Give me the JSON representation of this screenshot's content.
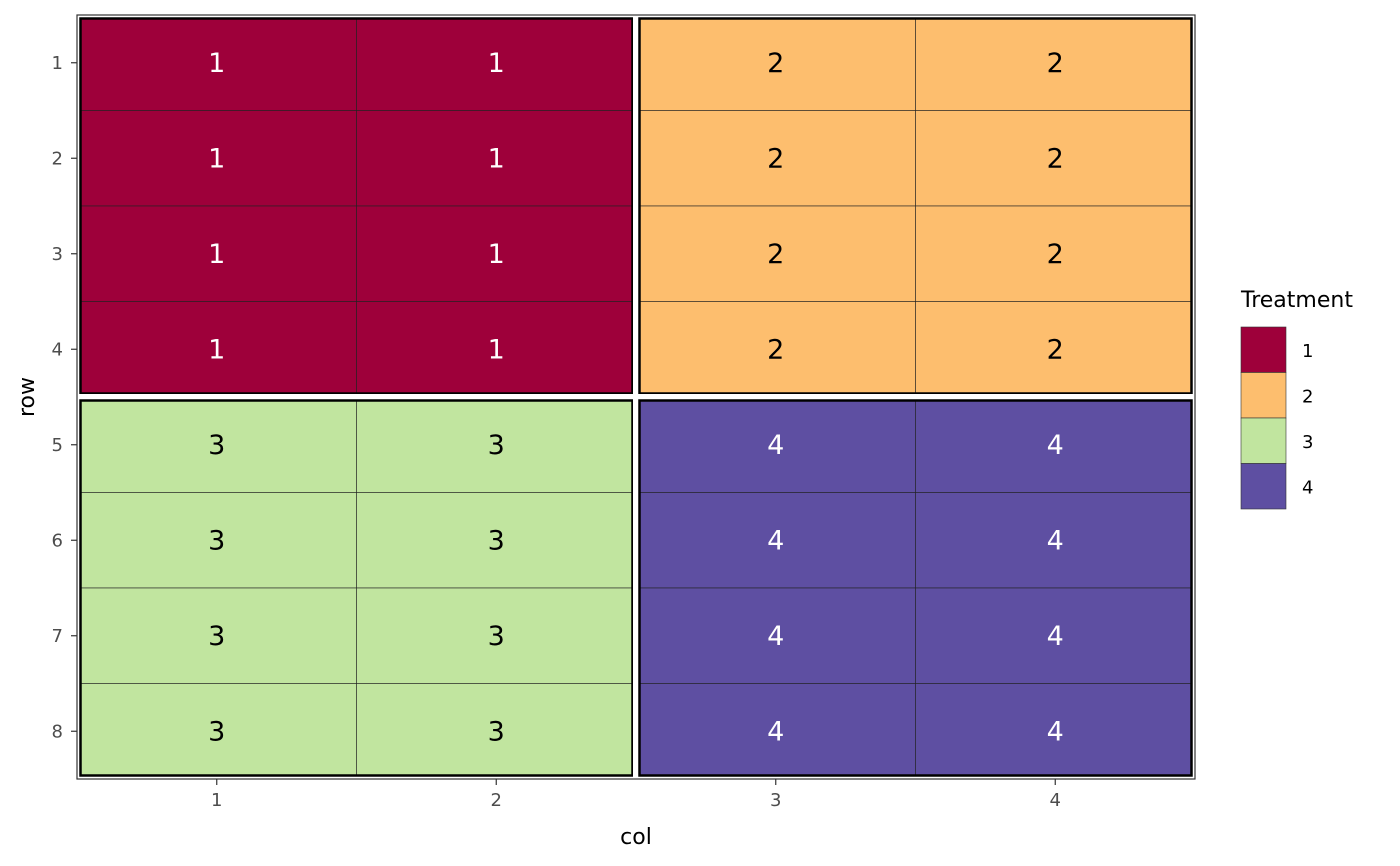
{
  "chart_data": {
    "type": "heatmap",
    "title": "",
    "xlabel": "col",
    "ylabel": "row",
    "x_ticks": [
      "1",
      "2",
      "3",
      "4"
    ],
    "y_ticks": [
      "1",
      "2",
      "3",
      "4",
      "5",
      "6",
      "7",
      "8"
    ],
    "x_range": [
      0.5,
      4.5
    ],
    "y_range": [
      0.5,
      8.5
    ],
    "y_reversed": true,
    "grid": false,
    "legend": {
      "title": "Treatment",
      "position": "right",
      "entries": [
        {
          "label": "1",
          "color": "#9E003A"
        },
        {
          "label": "2",
          "color": "#FDBE6E"
        },
        {
          "label": "3",
          "color": "#C1E59F"
        },
        {
          "label": "4",
          "color": "#5E4FA2"
        }
      ]
    },
    "label_colors": {
      "1": "#ffffff",
      "2": "#000000",
      "3": "#000000",
      "4": "#ffffff"
    },
    "cells": [
      {
        "row": 1,
        "col": 1,
        "treatment": "1"
      },
      {
        "row": 1,
        "col": 2,
        "treatment": "1"
      },
      {
        "row": 1,
        "col": 3,
        "treatment": "2"
      },
      {
        "row": 1,
        "col": 4,
        "treatment": "2"
      },
      {
        "row": 2,
        "col": 1,
        "treatment": "1"
      },
      {
        "row": 2,
        "col": 2,
        "treatment": "1"
      },
      {
        "row": 2,
        "col": 3,
        "treatment": "2"
      },
      {
        "row": 2,
        "col": 4,
        "treatment": "2"
      },
      {
        "row": 3,
        "col": 1,
        "treatment": "1"
      },
      {
        "row": 3,
        "col": 2,
        "treatment": "1"
      },
      {
        "row": 3,
        "col": 3,
        "treatment": "2"
      },
      {
        "row": 3,
        "col": 4,
        "treatment": "2"
      },
      {
        "row": 4,
        "col": 1,
        "treatment": "1"
      },
      {
        "row": 4,
        "col": 2,
        "treatment": "1"
      },
      {
        "row": 4,
        "col": 3,
        "treatment": "2"
      },
      {
        "row": 4,
        "col": 4,
        "treatment": "2"
      },
      {
        "row": 5,
        "col": 1,
        "treatment": "3"
      },
      {
        "row": 5,
        "col": 2,
        "treatment": "3"
      },
      {
        "row": 5,
        "col": 3,
        "treatment": "4"
      },
      {
        "row": 5,
        "col": 4,
        "treatment": "4"
      },
      {
        "row": 6,
        "col": 1,
        "treatment": "3"
      },
      {
        "row": 6,
        "col": 2,
        "treatment": "3"
      },
      {
        "row": 6,
        "col": 3,
        "treatment": "4"
      },
      {
        "row": 6,
        "col": 4,
        "treatment": "4"
      },
      {
        "row": 7,
        "col": 1,
        "treatment": "3"
      },
      {
        "row": 7,
        "col": 2,
        "treatment": "3"
      },
      {
        "row": 7,
        "col": 3,
        "treatment": "4"
      },
      {
        "row": 7,
        "col": 4,
        "treatment": "4"
      },
      {
        "row": 8,
        "col": 1,
        "treatment": "3"
      },
      {
        "row": 8,
        "col": 2,
        "treatment": "3"
      },
      {
        "row": 8,
        "col": 3,
        "treatment": "4"
      },
      {
        "row": 8,
        "col": 4,
        "treatment": "4"
      }
    ],
    "blocks": [
      {
        "treatment": "1",
        "rows": [
          1,
          4
        ],
        "cols": [
          1,
          2
        ]
      },
      {
        "treatment": "2",
        "rows": [
          1,
          4
        ],
        "cols": [
          3,
          4
        ]
      },
      {
        "treatment": "3",
        "rows": [
          5,
          8
        ],
        "cols": [
          1,
          2
        ]
      },
      {
        "treatment": "4",
        "rows": [
          5,
          8
        ],
        "cols": [
          3,
          4
        ]
      }
    ]
  }
}
